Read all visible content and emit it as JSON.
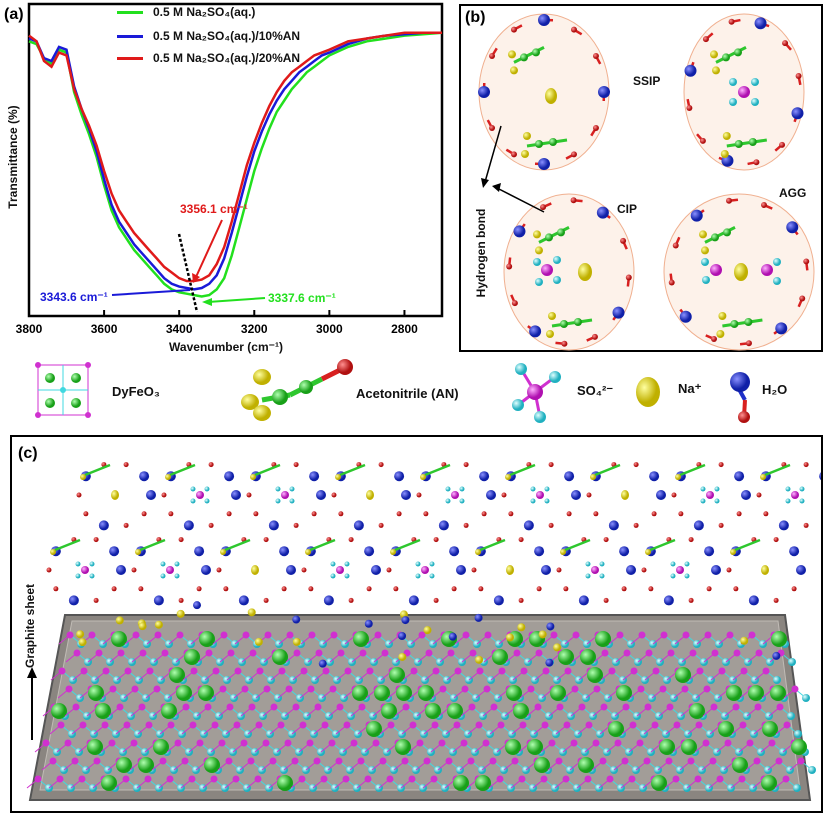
{
  "panel_a": {
    "label": "(a)",
    "ylabel": "Transmittance (%)",
    "xlabel": "Wavenumber (cm⁻¹)",
    "xticks": [
      "3800",
      "3600",
      "3400",
      "3200",
      "3000",
      "2800"
    ],
    "legend": [
      {
        "text": "0.5 M Na₂SO₄(aq.)",
        "color": "#22e01e"
      },
      {
        "text": "0.5 M Na₂SO₄(aq.)/10%AN",
        "color": "#1a1ad8"
      },
      {
        "text": "0.5 M Na₂SO₄(aq.)/20%AN",
        "color": "#e01a1a"
      }
    ],
    "annotations": [
      {
        "text": "3356.1 cm⁻¹",
        "color": "#e01a1a"
      },
      {
        "text": "3343.6 cm⁻¹",
        "color": "#1a1ad8"
      },
      {
        "text": "3337.6 cm⁻¹",
        "color": "#22e01e"
      }
    ]
  },
  "chart_data": {
    "type": "line",
    "xlabel": "Wavenumber (cm⁻¹)",
    "ylabel": "Transmittance (%)",
    "xlim": [
      3800,
      2700
    ],
    "ylim": [
      0,
      1
    ],
    "series": [
      {
        "name": "0.5 M Na₂SO₄(aq.)",
        "color": "#22e01e",
        "x": [
          3800,
          3780,
          3760,
          3740,
          3720,
          3700,
          3680,
          3660,
          3640,
          3620,
          3600,
          3580,
          3560,
          3540,
          3520,
          3500,
          3480,
          3460,
          3440,
          3420,
          3400,
          3380,
          3360,
          3340,
          3320,
          3300,
          3280,
          3260,
          3240,
          3220,
          3200,
          3180,
          3160,
          3140,
          3120,
          3100,
          3080,
          3060,
          3040,
          3020,
          3000,
          2950,
          2900,
          2850,
          2800,
          2750,
          2700
        ],
        "y": [
          0.96,
          0.95,
          0.9,
          0.88,
          0.93,
          0.92,
          0.78,
          0.7,
          0.63,
          0.55,
          0.45,
          0.36,
          0.3,
          0.26,
          0.22,
          0.19,
          0.16,
          0.13,
          0.1,
          0.08,
          0.07,
          0.065,
          0.06,
          0.055,
          0.06,
          0.08,
          0.12,
          0.2,
          0.3,
          0.4,
          0.5,
          0.58,
          0.65,
          0.71,
          0.75,
          0.79,
          0.82,
          0.85,
          0.87,
          0.89,
          0.91,
          0.94,
          0.96,
          0.97,
          0.98,
          0.985,
          0.99
        ]
      },
      {
        "name": "0.5 M Na₂SO₄(aq.)/10%AN",
        "color": "#1a1ad8",
        "x": [
          3800,
          3780,
          3760,
          3740,
          3720,
          3700,
          3680,
          3660,
          3640,
          3620,
          3600,
          3580,
          3560,
          3540,
          3520,
          3500,
          3480,
          3460,
          3440,
          3420,
          3400,
          3380,
          3360,
          3340,
          3320,
          3300,
          3280,
          3260,
          3240,
          3220,
          3200,
          3180,
          3160,
          3140,
          3120,
          3100,
          3080,
          3060,
          3040,
          3020,
          3000,
          2950,
          2900,
          2850,
          2800,
          2750,
          2700
        ],
        "y": [
          0.97,
          0.96,
          0.9,
          0.89,
          0.94,
          0.93,
          0.8,
          0.72,
          0.65,
          0.57,
          0.47,
          0.38,
          0.32,
          0.28,
          0.24,
          0.21,
          0.18,
          0.15,
          0.12,
          0.1,
          0.09,
          0.085,
          0.08,
          0.085,
          0.1,
          0.13,
          0.19,
          0.28,
          0.38,
          0.48,
          0.57,
          0.64,
          0.7,
          0.75,
          0.79,
          0.82,
          0.85,
          0.87,
          0.89,
          0.91,
          0.92,
          0.95,
          0.97,
          0.98,
          0.985,
          0.99,
          0.99
        ]
      },
      {
        "name": "0.5 M Na₂SO₄(aq.)/20%AN",
        "color": "#e01a1a",
        "x": [
          3800,
          3780,
          3760,
          3740,
          3720,
          3700,
          3680,
          3660,
          3640,
          3620,
          3600,
          3580,
          3560,
          3540,
          3520,
          3500,
          3480,
          3460,
          3440,
          3420,
          3400,
          3380,
          3360,
          3340,
          3320,
          3300,
          3280,
          3260,
          3240,
          3220,
          3200,
          3180,
          3160,
          3140,
          3120,
          3100,
          3080,
          3060,
          3040,
          3020,
          3000,
          2950,
          2900,
          2850,
          2800,
          2750,
          2700
        ],
        "y": [
          0.98,
          0.96,
          0.89,
          0.87,
          0.92,
          0.91,
          0.79,
          0.72,
          0.66,
          0.59,
          0.5,
          0.42,
          0.36,
          0.32,
          0.28,
          0.25,
          0.22,
          0.19,
          0.16,
          0.14,
          0.12,
          0.11,
          0.11,
          0.115,
          0.13,
          0.17,
          0.23,
          0.32,
          0.42,
          0.52,
          0.6,
          0.67,
          0.73,
          0.78,
          0.82,
          0.85,
          0.87,
          0.89,
          0.91,
          0.92,
          0.93,
          0.96,
          0.97,
          0.98,
          0.99,
          0.99,
          0.99
        ]
      }
    ]
  },
  "panel_b": {
    "label": "(b)",
    "ssip": "SSIP",
    "cip": "CIP",
    "agg": "AGG",
    "hbond": "Hydrogen bond"
  },
  "legend_row": {
    "dyfeo3": "DyFeO₃",
    "an": "Acetonitrile (AN)",
    "so4": "SO₄²⁻",
    "na": "Na⁺",
    "h2o": "H₂O"
  },
  "panel_c": {
    "label": "(c)",
    "graphite": "Graphite sheet"
  },
  "colors": {
    "water_o": "#1e2fc8",
    "water_h": "#d82020",
    "an_c": "#2ec72e",
    "an_n": "#e8e020",
    "sulfate_s": "#d030d0",
    "sulfate_o": "#40d8e0",
    "na": "#e0d010",
    "fe": "#d030d0",
    "dy": "#30c030"
  }
}
